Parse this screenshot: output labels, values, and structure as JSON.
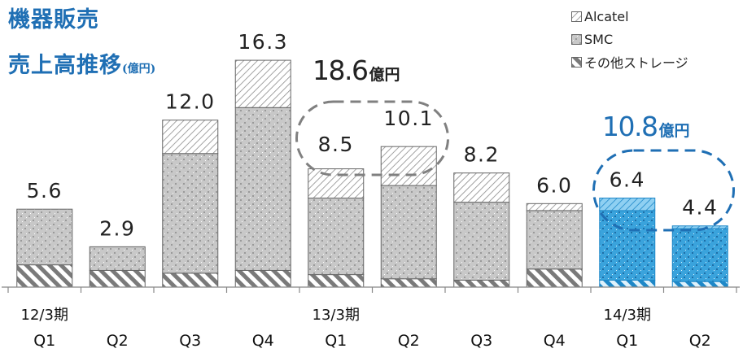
{
  "title_line1": "機器販売",
  "title_line2": "売上高推移",
  "title_unit": "(億円)",
  "legend": [
    "Alcatel",
    "SMC",
    "その他ストレージ"
  ],
  "colors": {
    "title": "#1f6fb4",
    "bar_stroke": "#666666",
    "highlight_fill": "#3aa3dc",
    "highlight_stroke": "#1e88c8",
    "callout_gray": "#808080",
    "callout_blue": "#1f6fb4"
  },
  "chart_data": {
    "type": "bar",
    "stacked": true,
    "categories": [
      "Q1",
      "Q2",
      "Q3",
      "Q4",
      "Q1",
      "Q2",
      "Q3",
      "Q4",
      "Q1",
      "Q2"
    ],
    "period_labels": [
      {
        "label": "12/3期",
        "category_index": 0
      },
      {
        "label": "13/3期",
        "category_index": 4
      },
      {
        "label": "14/3期",
        "category_index": 8
      }
    ],
    "series": [
      {
        "name": "その他ストレージ",
        "values": [
          1.6,
          1.2,
          1.0,
          1.2,
          0.9,
          0.6,
          0.5,
          1.3,
          0.5,
          0.4
        ]
      },
      {
        "name": "SMC",
        "values": [
          4.0,
          1.7,
          8.6,
          11.7,
          5.5,
          6.7,
          5.6,
          4.2,
          5.0,
          3.8
        ]
      },
      {
        "name": "Alcatel",
        "values": [
          0.0,
          0.0,
          2.4,
          3.4,
          2.1,
          2.8,
          2.1,
          0.5,
          0.9,
          0.2
        ]
      }
    ],
    "totals": [
      5.6,
      2.9,
      12.0,
      16.3,
      8.5,
      10.1,
      8.2,
      6.0,
      6.4,
      4.4
    ],
    "total_labels": [
      "5.6",
      "2.9",
      "12.0",
      "16.3",
      "8.5",
      "10.1",
      "8.2",
      "6.0",
      "6.4",
      "4.4"
    ],
    "highlight_bars": [
      8,
      9
    ],
    "callouts": [
      {
        "value": "18.6",
        "unit": "億円",
        "bars": [
          4,
          5
        ],
        "color": "gray"
      },
      {
        "value": "10.8",
        "unit": "億円",
        "bars": [
          8,
          9
        ],
        "color": "blue"
      }
    ],
    "ylim": [
      0,
      18
    ]
  }
}
